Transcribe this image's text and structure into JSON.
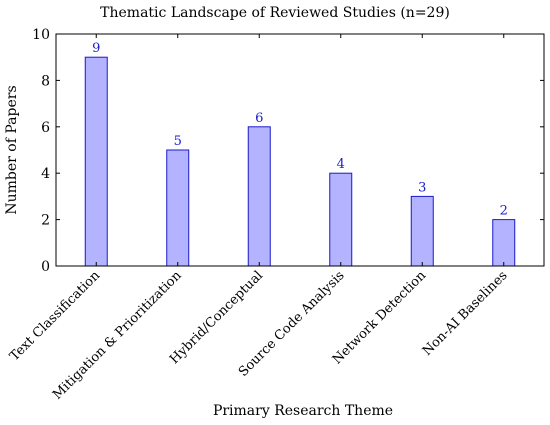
{
  "chart_data": {
    "type": "bar",
    "title": "Thematic Landscape of Reviewed Studies (n=29)",
    "xlabel": "Primary Research Theme",
    "ylabel": "Number of Papers",
    "categories": [
      "Text Classification",
      "Mitigation & Prioritization",
      "Hybrid/Conceptual",
      "Source Code Analysis",
      "Network Detection",
      "Non-AI Baselines"
    ],
    "values": [
      9,
      5,
      6,
      4,
      3,
      2
    ],
    "ylim": [
      0,
      10
    ],
    "yticks": [
      0,
      2,
      4,
      6,
      8,
      10
    ],
    "grid": false,
    "legend": "none",
    "colors": {
      "bar_fill": "#b3b3ff",
      "bar_stroke": "#1a1acc",
      "data_label": "#1a1acc",
      "axis": "#000000"
    }
  }
}
